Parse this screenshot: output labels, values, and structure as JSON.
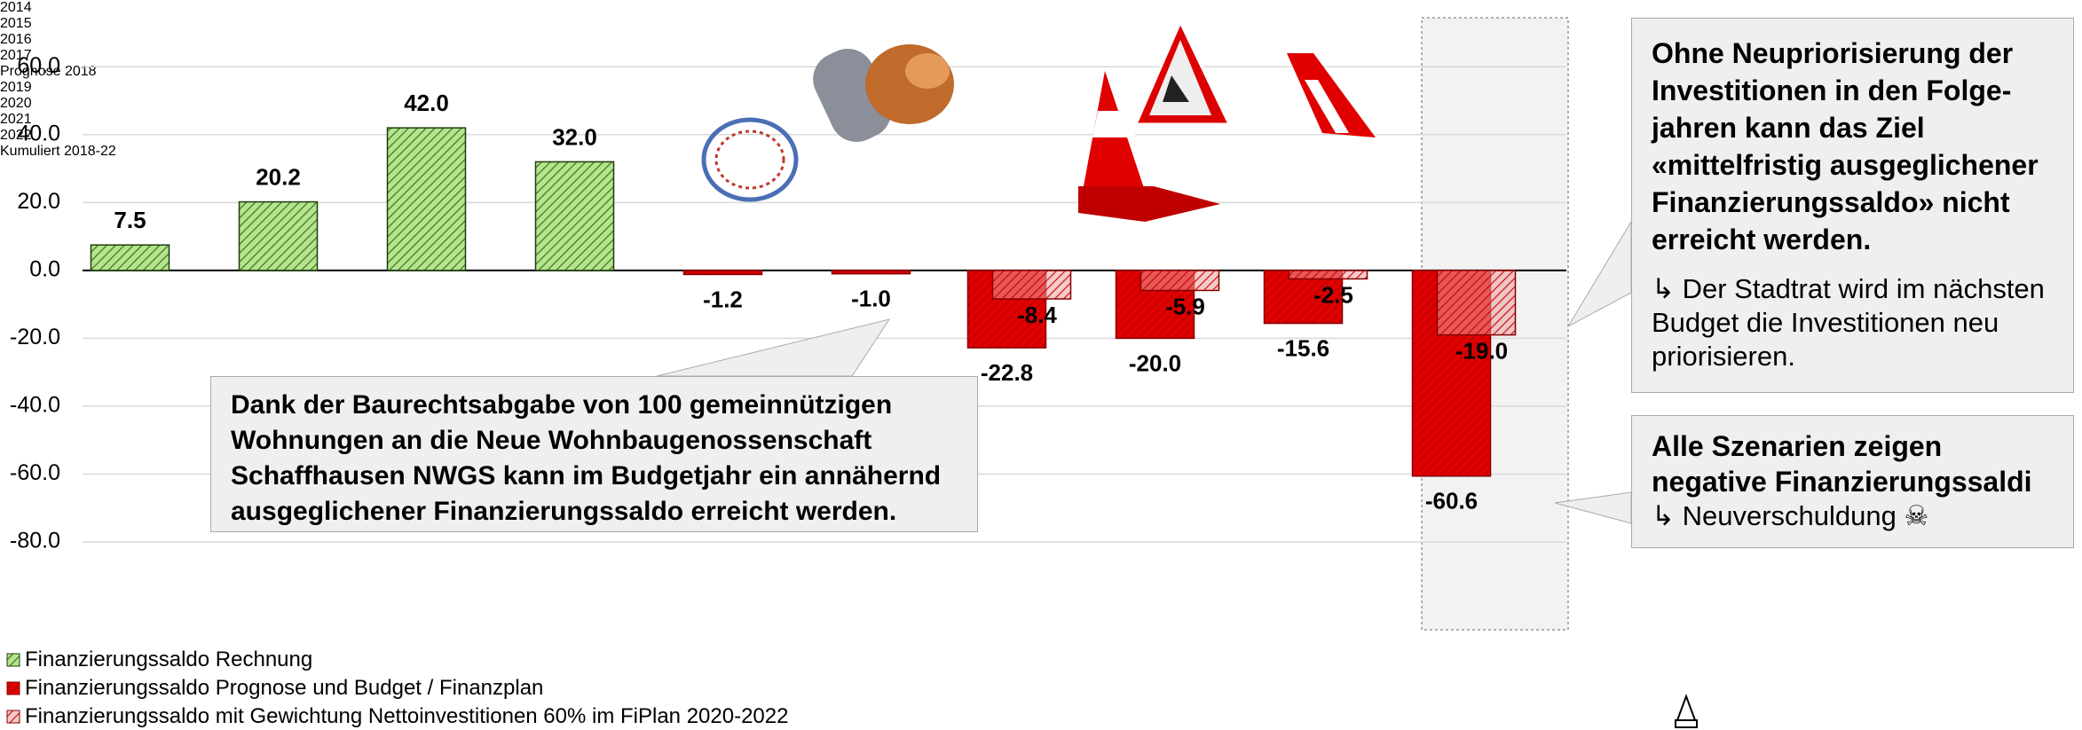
{
  "chart_data": {
    "type": "bar",
    "categories": [
      "2014",
      "2015",
      "2016",
      "2017",
      "Prognose 2018",
      "2019",
      "2020",
      "2021",
      "2022",
      "Kumuliert 2018-22"
    ],
    "series": [
      {
        "name": "Finanzierungssaldo Rechnung",
        "color": "#b5e48c",
        "values": [
          7.5,
          20.2,
          42,
          32,
          null,
          null,
          null,
          null,
          null,
          null
        ],
        "value_labels": [
          "7.5",
          "20.2",
          "42.0",
          "32.0",
          null,
          null,
          null,
          null,
          null,
          null
        ]
      },
      {
        "name": "Finanzierungssaldo Prognose und Budget / Finanzplan",
        "color": "#e00000",
        "values": [
          null,
          null,
          null,
          null,
          -1.2,
          -1,
          -22.8,
          -20,
          -15.6,
          -60.6
        ],
        "value_labels": [
          null,
          null,
          null,
          null,
          "-1.2",
          "-1.0",
          "-22.8",
          "-20.0",
          "-15.6",
          "-60.6"
        ]
      },
      {
        "name": "Finanzierungssaldo mit Gewichtung Nettoinvestitionen 60% im FiPlan 2020-2022",
        "color": "#eda0a0",
        "values": [
          null,
          null,
          null,
          null,
          null,
          null,
          -8.4,
          -5.9,
          -2.5,
          -19
        ],
        "value_labels": [
          null,
          null,
          null,
          null,
          null,
          null,
          "-8.4",
          "-5.9",
          "-2.5",
          "-19.0"
        ]
      }
    ],
    "ylim": [
      -80,
      70
    ],
    "yticks": [
      {
        "value": -80,
        "label": "-80.0"
      },
      {
        "value": -60,
        "label": "-60.0"
      },
      {
        "value": -40,
        "label": "-40.0"
      },
      {
        "value": -20,
        "label": "-20.0"
      },
      {
        "value": 0,
        "label": "0.0"
      },
      {
        "value": 20,
        "label": "20.0"
      },
      {
        "value": 40,
        "label": "40.0"
      },
      {
        "value": 60,
        "label": "60.0"
      }
    ],
    "grid": true,
    "annotations": {
      "callout_left": "Dank der Baurechtsabgabe von 100 gemeinnützigen Wohnungen an die Neue Wohnbaugenossenschaft Schaffhausen NWGS kann im Budgetjahr ein annähernd ausgeglichener Finanzierungssaldo erreicht werden.",
      "callout_right_top": {
        "title": "Ohne Neupriorisierung der Investitionen in den Folge-jahren kann das Ziel «mittelfristig ausgeglichener Finanzierungssaldo» nicht erreicht werden.",
        "note": "↳ Der Stadtrat wird im nächsten Budget die Investitionen neu priorisieren."
      },
      "callout_right_bottom": {
        "title": "Alle Szenarien zeigen negative Finanzierungssaldi",
        "note": "↳ Neuverschuldung ☠"
      }
    }
  }
}
